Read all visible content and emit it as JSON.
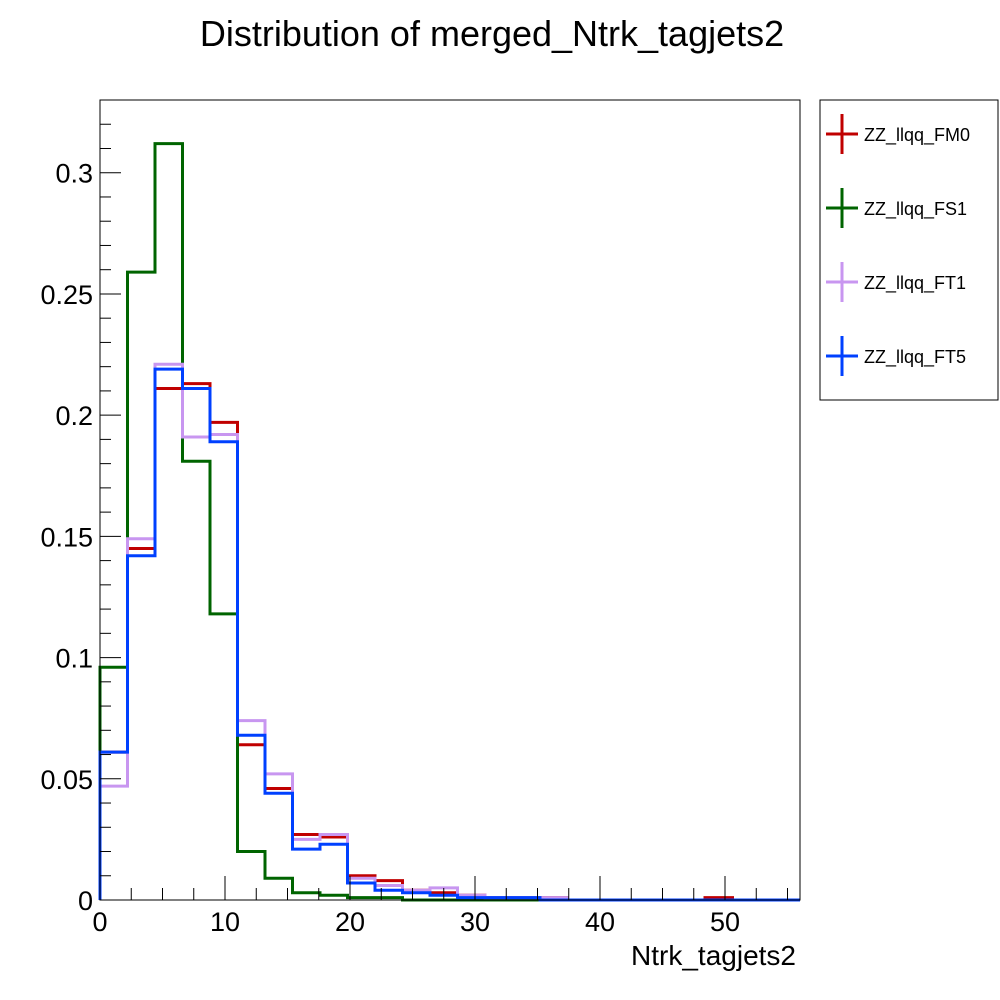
{
  "chart_data": {
    "type": "line",
    "style": "step-histogram",
    "title": "Distribution of merged_Ntrk_tagjets2",
    "xlabel": "Ntrk_tagjets2",
    "ylabel": "",
    "xlim": [
      0,
      56
    ],
    "ylim": [
      0,
      0.33
    ],
    "x_ticks": [
      0,
      10,
      20,
      30,
      40,
      50
    ],
    "x_tick_labels": [
      "0",
      "10",
      "20",
      "30",
      "40",
      "50"
    ],
    "y_ticks": [
      0,
      0.05,
      0.1,
      0.15,
      0.2,
      0.25,
      0.3
    ],
    "y_tick_labels": [
      "0",
      "0.05",
      "0.1",
      "0.15",
      "0.2",
      "0.25",
      "0.3"
    ],
    "grid": false,
    "legend_position": "outside-right-top",
    "bin_edges": [
      0,
      2.2,
      4.4,
      6.6,
      8.8,
      11.0,
      13.2,
      15.4,
      17.6,
      19.8,
      22.0,
      24.2,
      26.4,
      28.6,
      30.8,
      33.0,
      35.2,
      37.4,
      39.6,
      41.8,
      44.0,
      46.2,
      48.4,
      50.6,
      52.8,
      55.0
    ],
    "series": [
      {
        "name": "ZZ_llqq_FM0",
        "color": "#c00000",
        "values": [
          0.061,
          0.145,
          0.211,
          0.213,
          0.197,
          0.064,
          0.046,
          0.027,
          0.026,
          0.01,
          0.008,
          0.004,
          0.003,
          0.002,
          0.001,
          0.001,
          0.001,
          0.0,
          0.0,
          0.0,
          0.0,
          0.0,
          0.001,
          0.0,
          0.0
        ]
      },
      {
        "name": "ZZ_llqq_FS1",
        "color": "#006400",
        "values": [
          0.096,
          0.259,
          0.312,
          0.181,
          0.118,
          0.02,
          0.009,
          0.003,
          0.002,
          0.001,
          0.001,
          0.0,
          0.0,
          0.0,
          0.0,
          0.0,
          0.0,
          0.0,
          0.0,
          0.0,
          0.0,
          0.0,
          0.0,
          0.0,
          0.0
        ]
      },
      {
        "name": "ZZ_llqq_FT1",
        "color": "#c896f0",
        "values": [
          0.047,
          0.149,
          0.221,
          0.191,
          0.192,
          0.074,
          0.052,
          0.025,
          0.027,
          0.009,
          0.006,
          0.004,
          0.005,
          0.002,
          0.001,
          0.001,
          0.001,
          0.0,
          0.0,
          0.0,
          0.0,
          0.0,
          0.0,
          0.0,
          0.0
        ]
      },
      {
        "name": "ZZ_llqq_FT5",
        "color": "#0040ff",
        "values": [
          0.061,
          0.142,
          0.219,
          0.211,
          0.189,
          0.068,
          0.044,
          0.021,
          0.023,
          0.007,
          0.004,
          0.003,
          0.002,
          0.001,
          0.001,
          0.001,
          0.0,
          0.0,
          0.0,
          0.0,
          0.0,
          0.0,
          0.0,
          0.0,
          0.0
        ]
      }
    ]
  }
}
